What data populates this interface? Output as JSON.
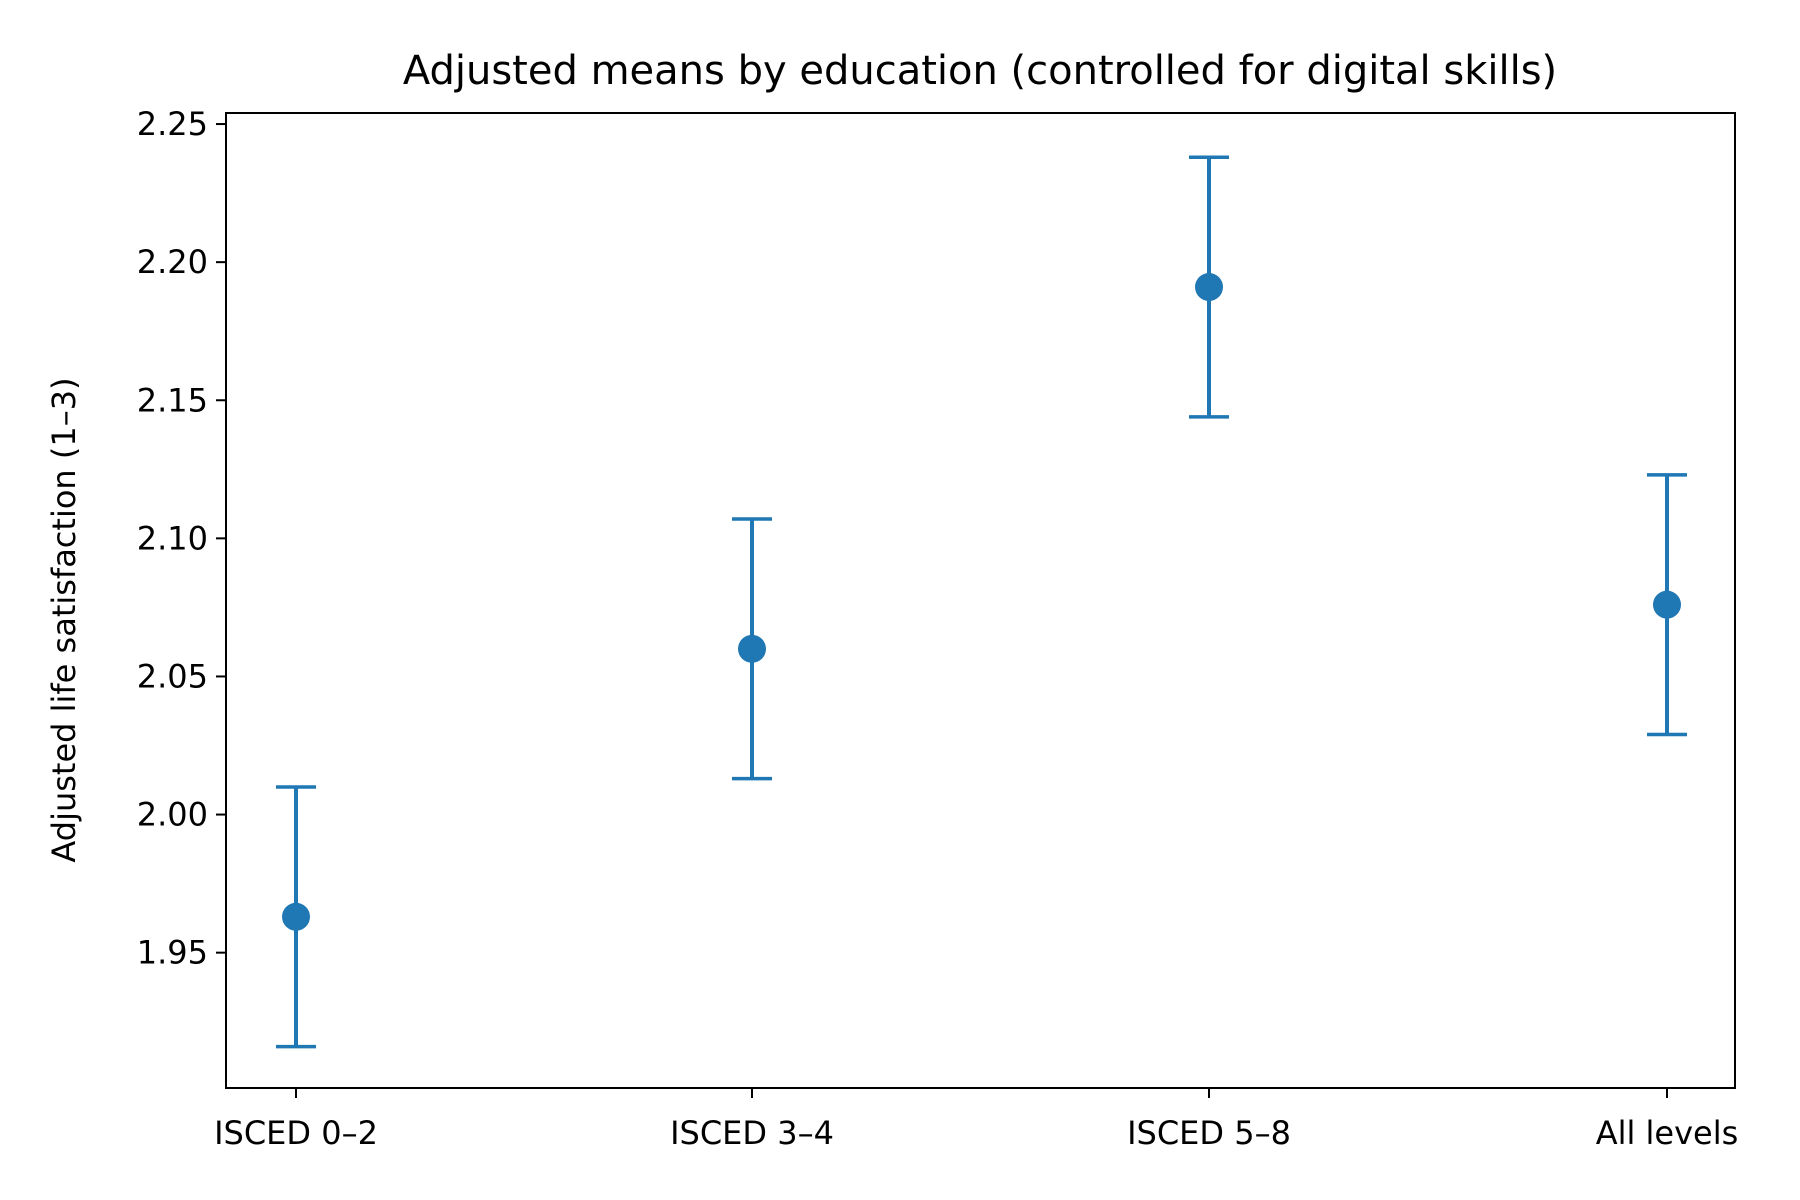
{
  "chart_data": {
    "type": "scatter",
    "title": "Adjusted means by education (controlled for digital skills)",
    "xlabel": "",
    "ylabel": "Adjusted life satisfaction (1–3)",
    "categories": [
      "ISCED 0–2",
      "ISCED 3–4",
      "ISCED 5–8",
      "All levels"
    ],
    "series": [
      {
        "values": [
          1.963,
          2.06,
          2.191,
          2.076
        ],
        "error_low": [
          1.916,
          2.013,
          2.144,
          2.029
        ],
        "error_high": [
          2.01,
          2.107,
          2.238,
          2.123
        ]
      }
    ],
    "ylim": [
      1.901,
      2.254
    ],
    "yticks": [
      "1.95",
      "2.00",
      "2.05",
      "2.10",
      "2.15",
      "2.20",
      "2.25"
    ],
    "grid": false,
    "legend": "none",
    "color": "#1f77b4"
  }
}
